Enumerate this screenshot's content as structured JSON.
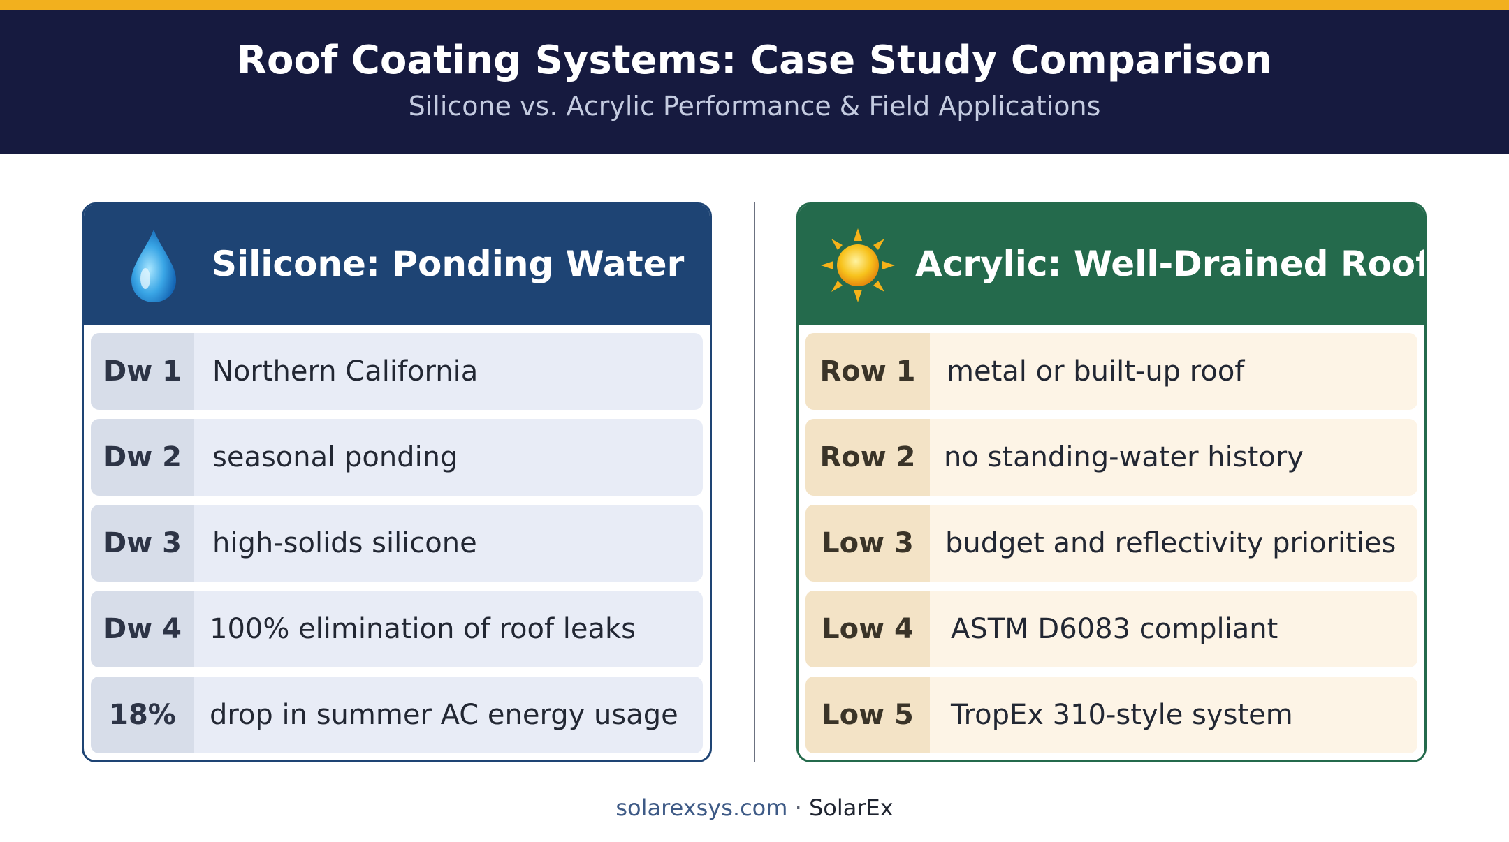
{
  "header": {
    "title": "Roof Coating Systems: Case Study Comparison",
    "subtitle": "Silicone vs. Acrylic Performance & Field Applications"
  },
  "colors": {
    "accent_stripe": "#f2b01e",
    "header_bg": "#161a3f",
    "silicone_blue": "#1e4474",
    "acrylic_green": "#246a4c"
  },
  "left_panel": {
    "title": "Silicone: Ponding Water",
    "icon": "water-drop-icon",
    "rows": [
      {
        "key": "Dw 1",
        "value": "Northern California"
      },
      {
        "key": "Dw 2",
        "value": "seasonal ponding"
      },
      {
        "key": "Dw 3",
        "value": "high-solids silicone"
      },
      {
        "key": "Dw 4",
        "value": "100% elimination of roof leaks"
      },
      {
        "key": "18%",
        "value": "drop in summer AC energy usage"
      }
    ]
  },
  "right_panel": {
    "title": "Acrylic: Well-Drained Roof",
    "icon": "sun-icon",
    "rows": [
      {
        "key": "Row 1",
        "value": "metal or built-up roof"
      },
      {
        "key": "Row 2",
        "value": "no standing-water history"
      },
      {
        "key": "Low 3",
        "value": "budget and reflectivity priorities"
      },
      {
        "key": "Low 4",
        "value": "ASTM D6083 compliant"
      },
      {
        "key": "Low 5",
        "value": "TropEx 310-style system"
      }
    ]
  },
  "footer": {
    "domain": "solarexsys.com",
    "separator": "·",
    "brand": "SolarEx"
  }
}
